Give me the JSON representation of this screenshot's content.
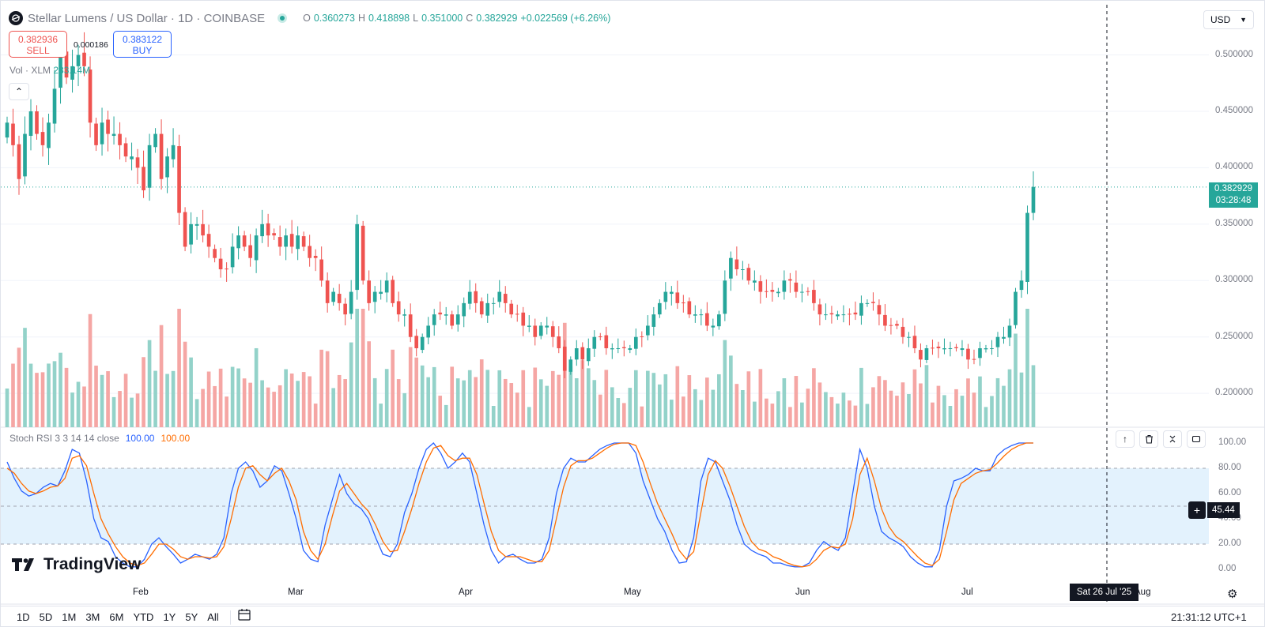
{
  "header": {
    "symbol_title": "Stellar Lumens / US Dollar · 1D · COINBASE",
    "ohlc": [
      {
        "k": "O",
        "v": "0.360273"
      },
      {
        "k": "H",
        "v": "0.418898"
      },
      {
        "k": "L",
        "v": "0.351000"
      },
      {
        "k": "C",
        "v": "0.382929"
      }
    ],
    "change": "+0.022569 (+6.26%)",
    "sell_price": "0.382936",
    "sell_label": "SELL",
    "buy_price": "0.383122",
    "buy_label": "BUY",
    "spread": "0.000186",
    "currency": "USD"
  },
  "volume": {
    "label": "Vol · XLM",
    "value": "283.14M"
  },
  "price_axis": {
    "ticks": [
      "0.500000",
      "0.450000",
      "0.400000",
      "0.350000",
      "0.300000",
      "0.250000",
      "0.200000"
    ],
    "last_price": "0.382929",
    "countdown": "03:28:48"
  },
  "rsi": {
    "label": "Stoch RSI 3 3 14 14 close",
    "k_value": "100.00",
    "d_value": "100.00",
    "ticks": [
      "100.00",
      "80.00",
      "60.00",
      "40.00",
      "20.00",
      "0.00"
    ],
    "cursor_value": "45.44"
  },
  "time_axis": {
    "labels": [
      "Feb",
      "Mar",
      "Apr",
      "May",
      "Jun",
      "Jul",
      "Aug"
    ],
    "cursor_date": "Sat 26 Jul '25"
  },
  "ranges": [
    "1D",
    "5D",
    "1M",
    "3M",
    "6M",
    "YTD",
    "1Y",
    "5Y",
    "All"
  ],
  "clock": "21:31:12 UTC+1",
  "brand": "TradingView",
  "colors": {
    "up": "#26a69a",
    "down": "#ef5350",
    "k_line": "#2962ff",
    "d_line": "#ff6d00",
    "rsi_band": "#e3f2fd"
  },
  "chart_data": [
    {
      "type": "candlestick",
      "title": "Stellar Lumens / US Dollar · 1D · COINBASE",
      "ylim": [
        0.17,
        0.52
      ],
      "x_labels": [
        "Feb",
        "Mar",
        "Apr",
        "May",
        "Jun",
        "Jul"
      ],
      "grid": true,
      "closes_approx": [
        0.44,
        0.42,
        0.39,
        0.43,
        0.45,
        0.43,
        0.42,
        0.44,
        0.47,
        0.5,
        0.48,
        0.49,
        0.5,
        0.49,
        0.44,
        0.42,
        0.44,
        0.43,
        0.43,
        0.42,
        0.41,
        0.41,
        0.4,
        0.38,
        0.42,
        0.43,
        0.39,
        0.41,
        0.42,
        0.36,
        0.33,
        0.35,
        0.35,
        0.34,
        0.33,
        0.32,
        0.31,
        0.31,
        0.33,
        0.34,
        0.33,
        0.32,
        0.34,
        0.35,
        0.34,
        0.34,
        0.33,
        0.34,
        0.33,
        0.34,
        0.33,
        0.32,
        0.32,
        0.3,
        0.28,
        0.29,
        0.28,
        0.27,
        0.29,
        0.35,
        0.3,
        0.28,
        0.29,
        0.29,
        0.3,
        0.28,
        0.27,
        0.27,
        0.25,
        0.24,
        0.25,
        0.26,
        0.27,
        0.27,
        0.27,
        0.26,
        0.27,
        0.28,
        0.29,
        0.28,
        0.27,
        0.28,
        0.28,
        0.29,
        0.28,
        0.27,
        0.27,
        0.26,
        0.26,
        0.25,
        0.26,
        0.26,
        0.25,
        0.24,
        0.22,
        0.23,
        0.24,
        0.23,
        0.24,
        0.25,
        0.25,
        0.24,
        0.24,
        0.24,
        0.24,
        0.24,
        0.25,
        0.25,
        0.26,
        0.27,
        0.28,
        0.29,
        0.29,
        0.28,
        0.28,
        0.27,
        0.27,
        0.27,
        0.26,
        0.26,
        0.27,
        0.3,
        0.32,
        0.31,
        0.31,
        0.3,
        0.3,
        0.29,
        0.29,
        0.29,
        0.29,
        0.3,
        0.3,
        0.29,
        0.29,
        0.29,
        0.28,
        0.27,
        0.27,
        0.27,
        0.27,
        0.27,
        0.27,
        0.27,
        0.28,
        0.28,
        0.28,
        0.27,
        0.26,
        0.26,
        0.26,
        0.25,
        0.25,
        0.24,
        0.23,
        0.24,
        0.24,
        0.24,
        0.24,
        0.24,
        0.24,
        0.24,
        0.23,
        0.23,
        0.24,
        0.24,
        0.24,
        0.25,
        0.25,
        0.26,
        0.29,
        0.3,
        0.36,
        0.383
      ]
    },
    {
      "type": "line",
      "title": "Stoch RSI 3 3 14 14 close",
      "ylim": [
        0,
        100
      ],
      "series": [
        {
          "name": "K",
          "values": [
            85,
            72,
            62,
            58,
            60,
            65,
            68,
            66,
            78,
            95,
            92,
            70,
            40,
            25,
            22,
            10,
            5,
            2,
            2,
            8,
            20,
            25,
            18,
            12,
            5,
            8,
            12,
            10,
            8,
            12,
            25,
            60,
            80,
            85,
            78,
            65,
            70,
            82,
            78,
            60,
            40,
            15,
            8,
            6,
            35,
            55,
            75,
            60,
            52,
            48,
            40,
            25,
            12,
            10,
            20,
            45,
            60,
            80,
            95,
            100,
            92,
            80,
            85,
            92,
            85,
            60,
            35,
            15,
            5,
            10,
            12,
            8,
            5,
            5,
            8,
            25,
            60,
            80,
            88,
            85,
            85,
            90,
            95,
            98,
            100,
            100,
            100,
            92,
            70,
            55,
            40,
            30,
            15,
            5,
            6,
            25,
            70,
            88,
            85,
            70,
            55,
            35,
            20,
            15,
            12,
            10,
            5,
            5,
            3,
            2,
            2,
            5,
            15,
            22,
            18,
            15,
            25,
            60,
            95,
            80,
            50,
            30,
            25,
            22,
            18,
            10,
            5,
            2,
            2,
            15,
            50,
            70,
            72,
            75,
            80,
            78,
            78,
            90,
            95,
            98,
            100,
            100,
            100
          ]
        },
        {
          "name": "D",
          "values": [
            80,
            76,
            68,
            62,
            60,
            62,
            65,
            66,
            72,
            88,
            90,
            82,
            60,
            40,
            28,
            18,
            10,
            5,
            3,
            5,
            12,
            20,
            20,
            16,
            10,
            8,
            10,
            10,
            9,
            10,
            18,
            40,
            65,
            80,
            82,
            75,
            70,
            76,
            80,
            70,
            55,
            30,
            15,
            8,
            20,
            42,
            62,
            68,
            60,
            52,
            46,
            35,
            22,
            14,
            15,
            30,
            48,
            68,
            85,
            96,
            98,
            90,
            86,
            88,
            88,
            75,
            52,
            30,
            15,
            10,
            10,
            10,
            8,
            6,
            6,
            15,
            40,
            65,
            82,
            86,
            86,
            88,
            92,
            96,
            99,
            100,
            100,
            98,
            85,
            68,
            52,
            40,
            28,
            15,
            8,
            14,
            45,
            75,
            86,
            80,
            66,
            50,
            34,
            22,
            16,
            14,
            10,
            8,
            5,
            3,
            2,
            3,
            8,
            15,
            18,
            17,
            20,
            40,
            75,
            88,
            70,
            48,
            34,
            26,
            22,
            16,
            10,
            5,
            3,
            8,
            30,
            55,
            68,
            72,
            76,
            78,
            79,
            84,
            90,
            95,
            98,
            100,
            100
          ]
        }
      ]
    }
  ]
}
